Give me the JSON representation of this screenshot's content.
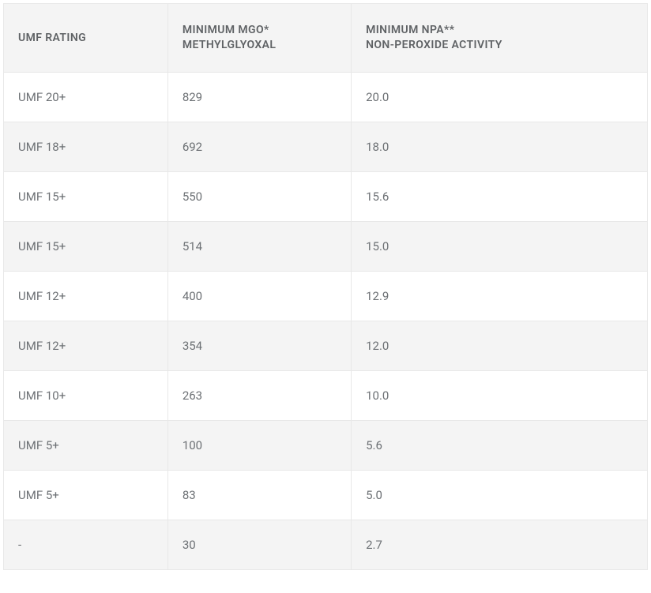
{
  "table": {
    "colors": {
      "header_bg": "#f4f4f4",
      "header_text": "#5f6265",
      "row_odd_bg": "#ffffff",
      "row_even_bg": "#f4f4f4",
      "cell_text": "#6c7074",
      "border": "#e8e8e8"
    },
    "columns": [
      {
        "line1": "UMF RATING",
        "line2": ""
      },
      {
        "line1": "MINIMUM MGO*",
        "line2": "METHYLGLYOXAL"
      },
      {
        "line1": "MINIMUM NPA**",
        "line2": "NON-PEROXIDE ACTIVITY"
      }
    ],
    "rows": [
      [
        "UMF 20+",
        "829",
        "20.0"
      ],
      [
        "UMF 18+",
        "692",
        "18.0"
      ],
      [
        "UMF 15+",
        "550",
        "15.6"
      ],
      [
        "UMF 15+",
        "514",
        "15.0"
      ],
      [
        "UMF 12+",
        "400",
        "12.9"
      ],
      [
        "UMF 12+",
        "354",
        "12.0"
      ],
      [
        "UMF 10+",
        "263",
        "10.0"
      ],
      [
        "UMF 5+",
        "100",
        "5.6"
      ],
      [
        "UMF 5+",
        "83",
        "5.0"
      ],
      [
        "-",
        "30",
        "2.7"
      ]
    ]
  }
}
